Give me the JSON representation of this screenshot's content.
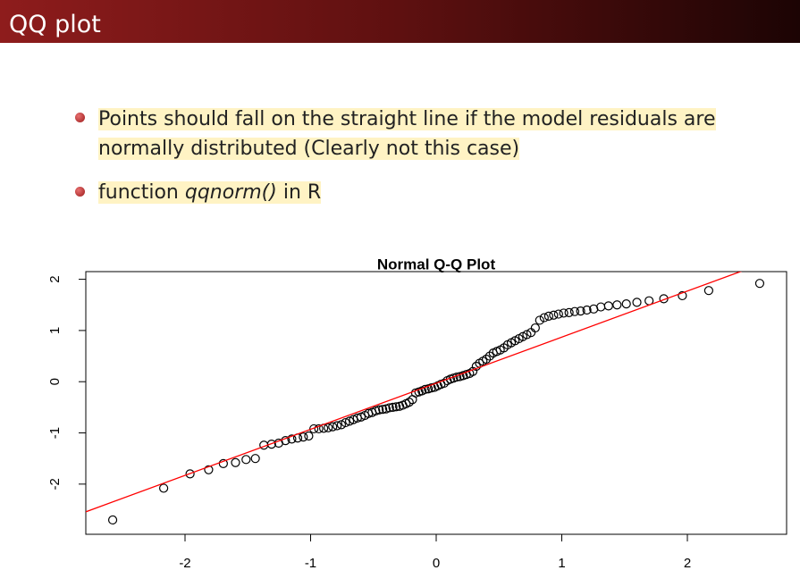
{
  "header": {
    "title": "QQ plot"
  },
  "bullets": [
    {
      "text": "Points should fall on the straight line if the model residuals are normally distributed (Clearly not this case)"
    },
    {
      "before": "function",
      "code": "qqnorm()",
      "after": "in R"
    }
  ],
  "chart_data": {
    "type": "scatter",
    "title": "Normal Q-Q Plot",
    "x": [
      -2.576,
      -2.17,
      -1.96,
      -1.812,
      -1.695,
      -1.598,
      -1.514,
      -1.44,
      -1.372,
      -1.311,
      -1.254,
      -1.2,
      -1.15,
      -1.103,
      -1.058,
      -1.015,
      -0.974,
      -0.935,
      -0.896,
      -0.86,
      -0.824,
      -0.789,
      -0.755,
      -0.722,
      -0.69,
      -0.659,
      -0.628,
      -0.598,
      -0.568,
      -0.539,
      -0.51,
      -0.482,
      -0.454,
      -0.426,
      -0.399,
      -0.372,
      -0.345,
      -0.319,
      -0.292,
      -0.266,
      -0.24,
      -0.215,
      -0.189,
      -0.164,
      -0.138,
      -0.113,
      -0.088,
      -0.063,
      -0.038,
      -0.013,
      0.013,
      0.038,
      0.063,
      0.088,
      0.113,
      0.138,
      0.164,
      0.189,
      0.215,
      0.24,
      0.266,
      0.292,
      0.319,
      0.345,
      0.372,
      0.399,
      0.426,
      0.454,
      0.482,
      0.51,
      0.539,
      0.568,
      0.598,
      0.628,
      0.659,
      0.69,
      0.722,
      0.755,
      0.789,
      0.824,
      0.86,
      0.896,
      0.935,
      0.974,
      1.015,
      1.058,
      1.103,
      1.15,
      1.2,
      1.254,
      1.311,
      1.372,
      1.44,
      1.514,
      1.598,
      1.695,
      1.812,
      1.96,
      2.17,
      2.576
    ],
    "values": [
      -2.7,
      -2.08,
      -1.8,
      -1.72,
      -1.6,
      -1.58,
      -1.52,
      -1.5,
      -1.24,
      -1.22,
      -1.2,
      -1.15,
      -1.12,
      -1.1,
      -1.08,
      -1.06,
      -0.92,
      -0.92,
      -0.91,
      -0.9,
      -0.88,
      -0.86,
      -0.84,
      -0.8,
      -0.77,
      -0.74,
      -0.71,
      -0.69,
      -0.66,
      -0.62,
      -0.6,
      -0.57,
      -0.55,
      -0.54,
      -0.53,
      -0.51,
      -0.5,
      -0.49,
      -0.48,
      -0.46,
      -0.43,
      -0.4,
      -0.35,
      -0.22,
      -0.2,
      -0.18,
      -0.15,
      -0.14,
      -0.12,
      -0.11,
      -0.08,
      -0.05,
      -0.03,
      0.02,
      0.05,
      0.07,
      0.09,
      0.1,
      0.12,
      0.14,
      0.16,
      0.2,
      0.3,
      0.36,
      0.4,
      0.44,
      0.5,
      0.56,
      0.59,
      0.62,
      0.66,
      0.72,
      0.76,
      0.8,
      0.84,
      0.88,
      0.92,
      0.96,
      1.05,
      1.2,
      1.25,
      1.28,
      1.3,
      1.32,
      1.34,
      1.35,
      1.37,
      1.38,
      1.4,
      1.42,
      1.46,
      1.48,
      1.5,
      1.52,
      1.55,
      1.58,
      1.62,
      1.68,
      1.78,
      1.92
    ],
    "line": {
      "intercept": -0.03,
      "slope": 0.9,
      "color": "#ff0000"
    },
    "xlim": [
      -2.79,
      2.79
    ],
    "ylim": [
      -2.98,
      2.15
    ],
    "xticks": [
      -2,
      -1,
      0,
      1,
      2
    ],
    "yticks": [
      -2,
      -1,
      0,
      1,
      2
    ]
  }
}
